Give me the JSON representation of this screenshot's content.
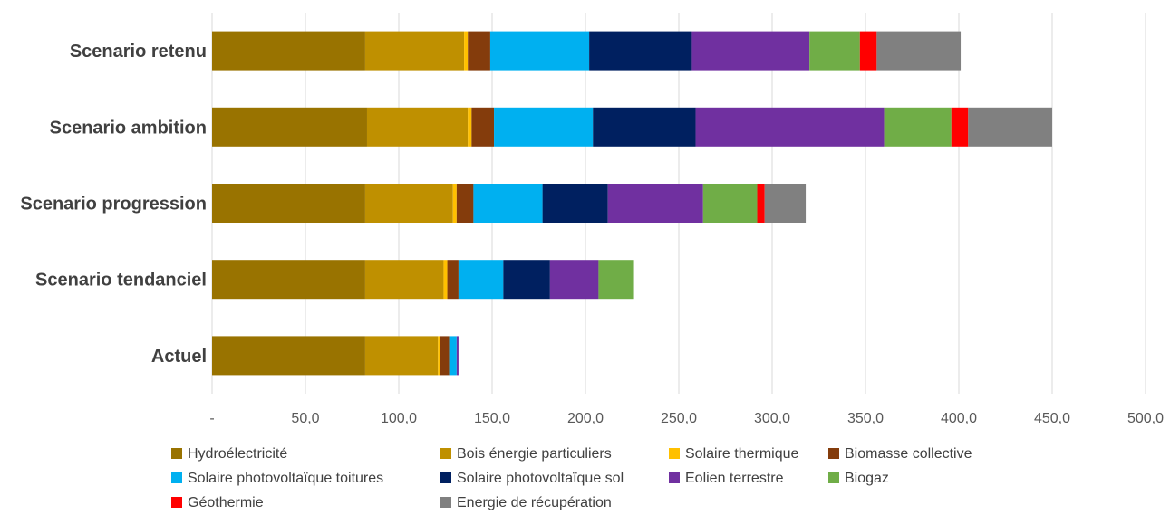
{
  "chart_data": {
    "type": "bar",
    "orientation": "horizontal",
    "stacked": true,
    "title": "",
    "xlabel": "",
    "ylabel": "",
    "xlim": [
      0,
      500
    ],
    "grid": "vertical",
    "legend_position": "bottom",
    "x_tick_labels": [
      "-",
      "50,0",
      "100,0",
      "150,0",
      "200,0",
      "250,0",
      "300,0",
      "350,0",
      "400,0",
      "450,0",
      "500,0"
    ],
    "categories": [
      "Scenario retenu",
      "Scenario ambition",
      "Scenario progression",
      "Scenario tendanciel",
      "Actuel"
    ],
    "series": [
      {
        "name": "Hydroélectricité",
        "color": "#997300",
        "values": [
          82,
          83,
          82,
          82,
          82
        ]
      },
      {
        "name": "Bois énergie particuliers",
        "color": "#bf9000",
        "values": [
          53,
          54,
          47,
          42,
          39
        ]
      },
      {
        "name": "Solaire thermique",
        "color": "#ffc000",
        "values": [
          2,
          2,
          2,
          2,
          1
        ]
      },
      {
        "name": "Biomasse collective",
        "color": "#843c0c",
        "values": [
          12,
          12,
          9,
          6,
          5
        ]
      },
      {
        "name": "Solaire photovoltaïque toitures",
        "color": "#00b0f0",
        "values": [
          53,
          53,
          37,
          24,
          4
        ]
      },
      {
        "name": "Solaire photovoltaïque sol",
        "color": "#002060",
        "values": [
          55,
          55,
          35,
          25,
          0
        ]
      },
      {
        "name": "Eolien terrestre",
        "color": "#7030a0",
        "values": [
          63,
          101,
          51,
          26,
          1
        ]
      },
      {
        "name": "Biogaz",
        "color": "#70ad47",
        "values": [
          27,
          36,
          29,
          19,
          0
        ]
      },
      {
        "name": "Géothermie",
        "color": "#ff0000",
        "values": [
          9,
          9,
          4,
          0,
          0
        ]
      },
      {
        "name": "Energie de récupération",
        "color": "#808080",
        "values": [
          45,
          45,
          22,
          0,
          0
        ]
      }
    ]
  }
}
